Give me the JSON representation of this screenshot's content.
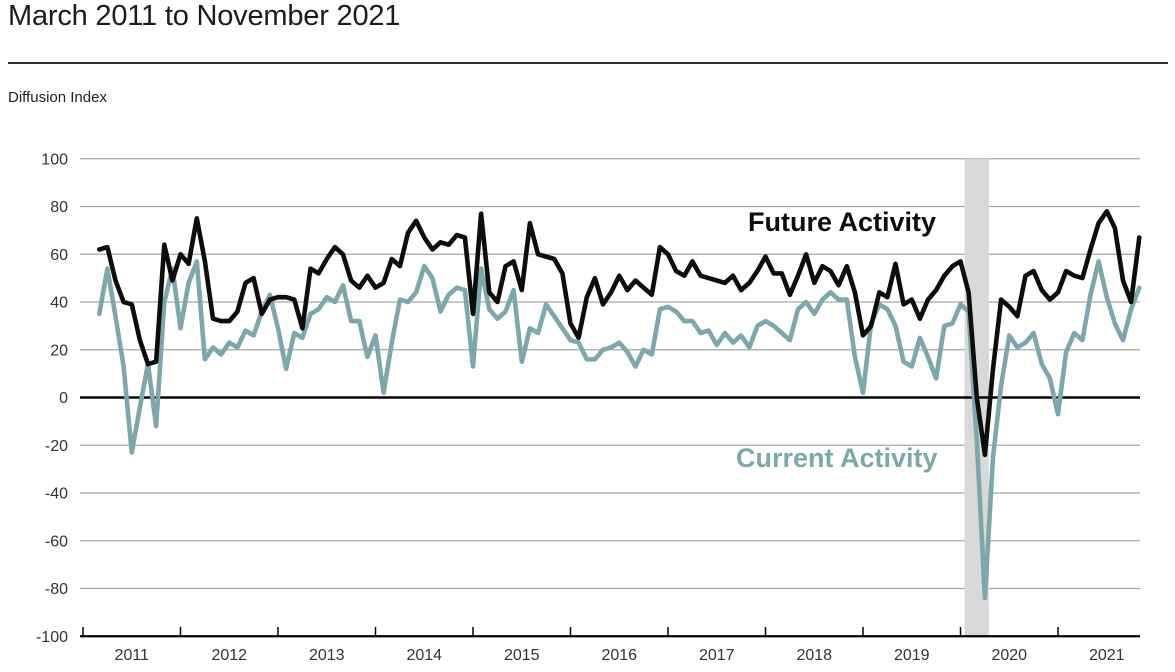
{
  "header": {
    "title": "March 2011 to November 2021",
    "unit_label": "Diffusion Index"
  },
  "chart_data": {
    "type": "line",
    "title": "March 2011 to November 2021",
    "ylabel": "Diffusion Index",
    "ylim": [
      -100,
      100
    ],
    "ytick_interval": 20,
    "grid": "horizontal",
    "legend_position": "in-plot-text-labels",
    "x_tick_years": [
      "2011",
      "2012",
      "2013",
      "2014",
      "2015",
      "2016",
      "2017",
      "2018",
      "2019",
      "2020",
      "2021"
    ],
    "start_month": "2011-03",
    "end_month": "2021-11",
    "recession_band": {
      "start": "2020-02",
      "end": "2020-05",
      "color": "#d9d9d9"
    },
    "axis_colors": {
      "gridline": "#a6a6a6",
      "zero_line": "#000000",
      "axis_line": "#000000",
      "tick_label": "#333333"
    },
    "series": [
      {
        "name": "Future Activity",
        "color": "#0d0d0d",
        "values": [
          62,
          63,
          49,
          40,
          39,
          24,
          14,
          15,
          64,
          49,
          60,
          56,
          75,
          57,
          33,
          32,
          32,
          36,
          48,
          50,
          35,
          41,
          42,
          42,
          41,
          29,
          54,
          52,
          58,
          63,
          60,
          49,
          46,
          51,
          46,
          48,
          58,
          55,
          69,
          74,
          67,
          62,
          65,
          64,
          68,
          67,
          35,
          77,
          44,
          40,
          55,
          57,
          45,
          73,
          60,
          59,
          58,
          52,
          31,
          25,
          42,
          50,
          39,
          44,
          51,
          45,
          49,
          46,
          43,
          63,
          60,
          53,
          51,
          57,
          51,
          50,
          49,
          48,
          51,
          45,
          48,
          53,
          59,
          52,
          52,
          43,
          51,
          60,
          48,
          55,
          53,
          47,
          55,
          44,
          26,
          30,
          44,
          42,
          56,
          39,
          41,
          33,
          41,
          45,
          51,
          55,
          57,
          44,
          0,
          -24,
          12,
          41,
          38,
          34,
          51,
          53,
          45,
          41,
          44,
          53,
          51,
          50,
          62,
          73,
          78,
          71,
          49,
          40,
          67
        ]
      },
      {
        "name": "Current Activity",
        "color": "#7ba7ad",
        "values": [
          35,
          54,
          34,
          13,
          -23,
          -4,
          14,
          -12,
          40,
          54,
          29,
          48,
          57,
          16,
          21,
          18,
          23,
          21,
          28,
          26,
          36,
          43,
          29,
          12,
          27,
          25,
          35,
          37,
          42,
          40,
          47,
          32,
          32,
          17,
          26,
          2,
          23,
          41,
          40,
          44,
          55,
          50,
          36,
          43,
          46,
          45,
          13,
          54,
          37,
          33,
          36,
          45,
          15,
          29,
          27,
          39,
          34,
          29,
          24,
          23,
          16,
          16,
          20,
          21,
          23,
          19,
          13,
          20,
          18,
          37,
          38,
          36,
          32,
          32,
          27,
          28,
          22,
          27,
          23,
          26,
          21,
          30,
          32,
          30,
          27,
          24,
          37,
          40,
          35,
          41,
          44,
          41,
          41,
          17,
          2,
          31,
          39,
          37,
          30,
          15,
          13,
          25,
          17,
          8,
          30,
          31,
          39,
          36,
          -18,
          -84,
          -25,
          5,
          26,
          21,
          23,
          27,
          14,
          8,
          -7,
          19,
          27,
          24,
          43,
          57,
          42,
          31,
          24,
          37,
          46
        ]
      }
    ]
  }
}
